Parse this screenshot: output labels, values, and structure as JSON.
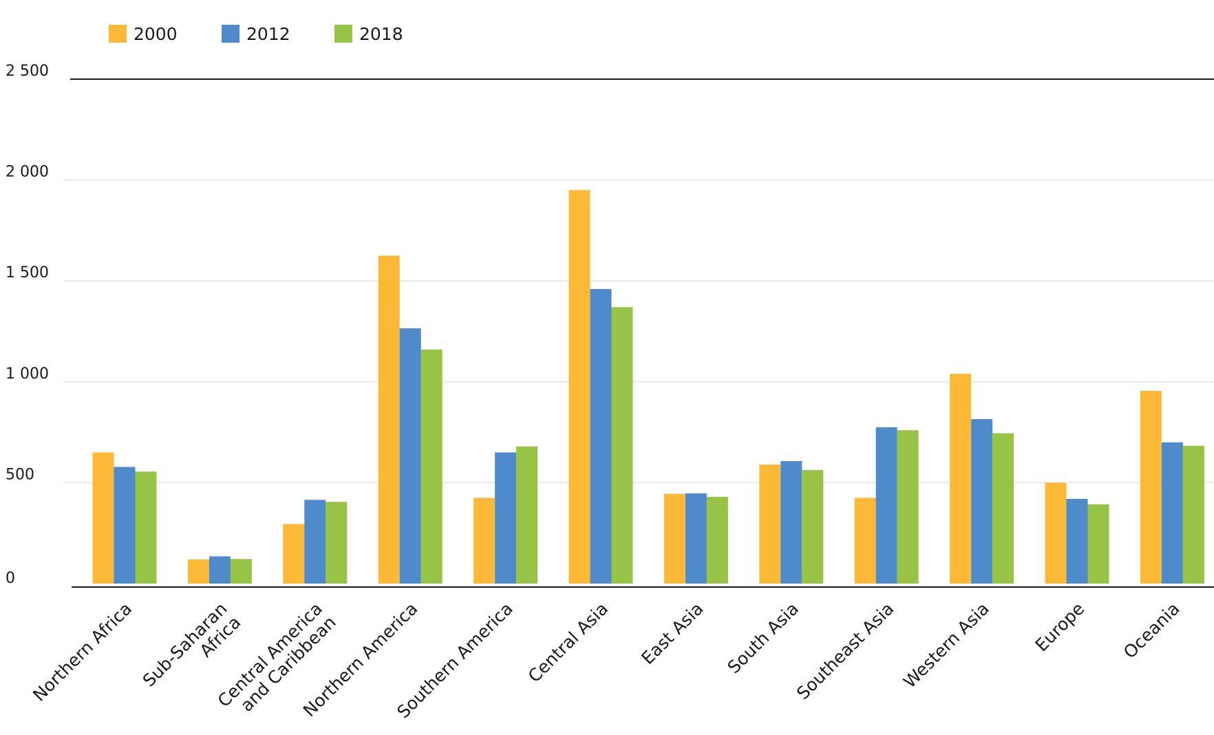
{
  "chart_data": {
    "type": "bar",
    "title": "",
    "xlabel": "",
    "ylabel": "",
    "ylim": [
      0,
      2500
    ],
    "yticks": [
      0,
      500,
      1000,
      1500,
      2000,
      2500
    ],
    "ytick_labels": [
      "0",
      "500",
      "1 000",
      "1 500",
      "2 000",
      "2 500"
    ],
    "grid": true,
    "legend_position": "top-left",
    "categories": [
      "Northern Africa",
      "Sub-Saharan Africa",
      "Central America and Caribbean",
      "Northern America",
      "Southern America",
      "Central Asia",
      "East Asia",
      "South Asia",
      "Southeast Asia",
      "Western Asia",
      "Europe",
      "Oceania"
    ],
    "category_label_lines": [
      [
        "Northern Africa"
      ],
      [
        "Sub-Saharan",
        "Africa"
      ],
      [
        "Central America",
        "and Caribbean"
      ],
      [
        "Northern America"
      ],
      [
        "Southern America"
      ],
      [
        "Central Asia"
      ],
      [
        "East Asia"
      ],
      [
        "South Asia"
      ],
      [
        "Southeast Asia"
      ],
      [
        "Western Asia"
      ],
      [
        "Europe"
      ],
      [
        "Oceania"
      ]
    ],
    "series": [
      {
        "name": "2000",
        "color": "#FBB937",
        "values": [
          650,
          120,
          295,
          1625,
          425,
          1950,
          445,
          590,
          425,
          1040,
          500,
          955
        ]
      },
      {
        "name": "2012",
        "color": "#4F8ACB",
        "values": [
          578,
          135,
          415,
          1265,
          650,
          1460,
          447,
          607,
          775,
          815,
          420,
          700
        ]
      },
      {
        "name": "2018",
        "color": "#97C447",
        "values": [
          555,
          122,
          405,
          1160,
          680,
          1370,
          430,
          563,
          760,
          745,
          393,
          683
        ]
      }
    ]
  }
}
